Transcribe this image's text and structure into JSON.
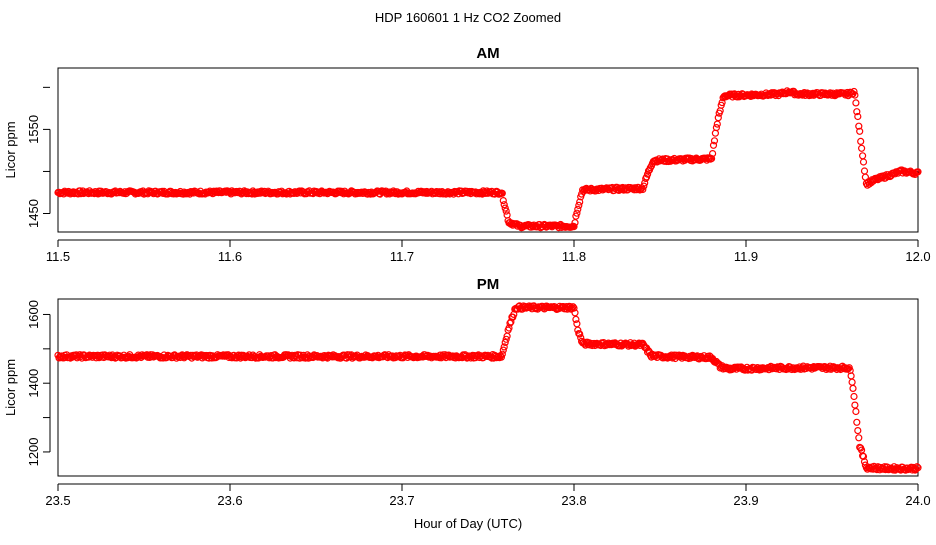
{
  "figure": {
    "title": "HDP  160601  1 Hz CO2 Zoomed",
    "xlabel": "Hour of Day (UTC)"
  },
  "colors": {
    "series": "#ff0000",
    "axis": "#000000",
    "background": "#ffffff"
  },
  "chart_data": [
    {
      "type": "scatter",
      "title": "AM",
      "xlabel": "",
      "ylabel": "Licor ppm",
      "xlim": [
        11.5,
        12.0
      ],
      "ylim": [
        1428,
        1623
      ],
      "xticks": [
        11.5,
        11.6,
        11.7,
        11.8,
        11.9,
        12.0
      ],
      "xtick_labels": [
        "11.5",
        "11.6",
        "11.7",
        "11.8",
        "11.9",
        "12.0"
      ],
      "yticks": [
        1450,
        1550
      ],
      "ytick_labels": [
        "1450",
        "1550"
      ],
      "grid": false,
      "series": [
        {
          "x": [
            11.5,
            11.6,
            11.7,
            11.758,
            11.762,
            11.768,
            11.8,
            11.802,
            11.805,
            11.84,
            11.843,
            11.846,
            11.88,
            11.883,
            11.887,
            11.92,
            11.925,
            11.93,
            11.96,
            11.963,
            11.97,
            11.975,
            11.99,
            12.0
          ],
          "y": [
            1475,
            1475,
            1475,
            1475,
            1440,
            1435,
            1435,
            1455,
            1478,
            1480,
            1498,
            1513,
            1515,
            1555,
            1590,
            1592,
            1595,
            1592,
            1592,
            1595,
            1485,
            1490,
            1500,
            1498
          ]
        }
      ]
    },
    {
      "type": "scatter",
      "title": "PM",
      "xlabel": "",
      "ylabel": "Licor ppm",
      "xlim": [
        23.5,
        24.0
      ],
      "ylim": [
        1130,
        1645
      ],
      "xticks": [
        23.5,
        23.6,
        23.7,
        23.8,
        23.9,
        24.0
      ],
      "xtick_labels": [
        "23.5",
        "23.6",
        "23.7",
        "23.8",
        "23.9",
        "24.0"
      ],
      "yticks": [
        1200,
        1400,
        1600
      ],
      "ytick_labels": [
        "1200",
        "1400",
        "1600"
      ],
      "grid": false,
      "series": [
        {
          "x": [
            23.5,
            23.6,
            23.7,
            23.758,
            23.762,
            23.766,
            23.8,
            23.802,
            23.805,
            23.84,
            23.845,
            23.85,
            23.88,
            23.885,
            23.89,
            23.93,
            23.96,
            23.962,
            23.966,
            23.97,
            23.98,
            24.0
          ],
          "y": [
            1478,
            1478,
            1478,
            1478,
            1560,
            1620,
            1620,
            1560,
            1515,
            1512,
            1480,
            1478,
            1475,
            1448,
            1442,
            1445,
            1445,
            1400,
            1220,
            1155,
            1152,
            1152
          ]
        }
      ]
    }
  ]
}
